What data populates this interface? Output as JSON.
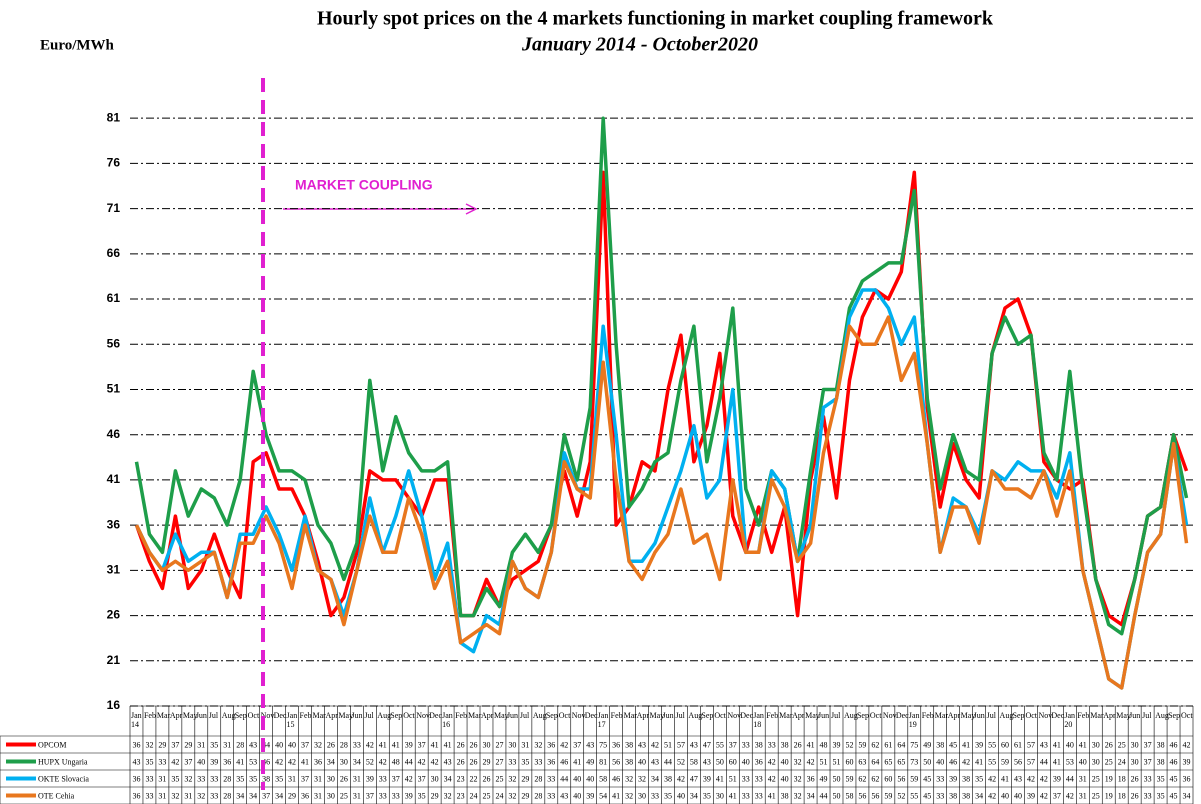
{
  "chart_data": {
    "type": "line",
    "title": "Hourly spot prices on the 4 markets functioning in market coupling framework",
    "subtitle": "January 2014 - October2020",
    "y_label": "Euro/MWh",
    "annotation": "MARKET COUPLING",
    "categories": [
      "Jan 14",
      "Feb",
      "Mar",
      "Apr",
      "May",
      "Jun",
      "Jul",
      "Aug",
      "Sep",
      "Oct",
      "Nov",
      "Dec",
      "Jan 15",
      "Feb",
      "Mar",
      "Apr",
      "May",
      "Jun",
      "Jul",
      "Aug",
      "Sep",
      "Oct",
      "Nov",
      "Dec",
      "Jan 16",
      "Feb",
      "Mar",
      "Apr",
      "May",
      "Jun",
      "Jul",
      "Aug",
      "Sep",
      "Oct",
      "Nov",
      "Dec",
      "Jan 17",
      "Feb",
      "Mar",
      "Apr",
      "May",
      "Jun",
      "Jul",
      "Aug",
      "Sep",
      "Oct",
      "Nov",
      "Dec",
      "Jan 18",
      "Feb",
      "Mar",
      "Apr",
      "May",
      "Jun",
      "Jul",
      "Aug",
      "Sep",
      "Oct",
      "Nov",
      "Dec",
      "Jan 19",
      "Feb",
      "Mar",
      "Apr",
      "May",
      "Jun",
      "Jul",
      "Aug",
      "Sep",
      "Oct",
      "Nov",
      "Dec",
      "Jan 20",
      "Feb",
      "Mar",
      "Apr",
      "May",
      "Jun",
      "Jul",
      "Aug",
      "Sep",
      "Oct"
    ],
    "series": [
      {
        "name": "OPCOM",
        "color": "#ff0000",
        "values": [
          36,
          32,
          29,
          37,
          29,
          31,
          35,
          31,
          28,
          43,
          44,
          40,
          40,
          37,
          32,
          26,
          28,
          33,
          42,
          41,
          41,
          39,
          37,
          41,
          41,
          26,
          26,
          30,
          27,
          30,
          31,
          32,
          36,
          42,
          37,
          43,
          75,
          36,
          38,
          43,
          42,
          51,
          57,
          43,
          47,
          55,
          37,
          33,
          38,
          33,
          38,
          26,
          41,
          48,
          39,
          52,
          59,
          62,
          61,
          64,
          75,
          49,
          38,
          45,
          41,
          39,
          55,
          60,
          61,
          57,
          43,
          41,
          40,
          41,
          30,
          26,
          25,
          30,
          37,
          38,
          46,
          42
        ]
      },
      {
        "name": "HUPX  Ungaria",
        "color": "#1e9e4a",
        "values": [
          43,
          35,
          33,
          42,
          37,
          40,
          39,
          36,
          41,
          53,
          46,
          42,
          42,
          41,
          36,
          34,
          30,
          34,
          52,
          42,
          48,
          44,
          42,
          42,
          43,
          26,
          26,
          29,
          27,
          33,
          35,
          33,
          36,
          46,
          41,
          49,
          81,
          56,
          38,
          40,
          43,
          44,
          52,
          58,
          43,
          50,
          60,
          40,
          36,
          42,
          40,
          32,
          42,
          51,
          51,
          60,
          63,
          64,
          65,
          65,
          73,
          50,
          40,
          46,
          42,
          41,
          55,
          59,
          56,
          57,
          44,
          41,
          53,
          40,
          30,
          25,
          24,
          30,
          37,
          38,
          46,
          39
        ]
      },
      {
        "name": "OKTE Slovacia",
        "color": "#00b0f0",
        "values": [
          36,
          33,
          31,
          35,
          32,
          33,
          33,
          28,
          35,
          35,
          38,
          35,
          31,
          37,
          31,
          30,
          26,
          31,
          39,
          33,
          37,
          42,
          37,
          30,
          34,
          23,
          22,
          26,
          25,
          32,
          29,
          28,
          33,
          44,
          40,
          40,
          58,
          46,
          32,
          32,
          34,
          38,
          42,
          47,
          39,
          41,
          51,
          33,
          33,
          42,
          40,
          32,
          36,
          49,
          50,
          59,
          62,
          62,
          60,
          56,
          59,
          45,
          33,
          39,
          38,
          35,
          42,
          41,
          43,
          42,
          42,
          39,
          44,
          31,
          25,
          19,
          18,
          26,
          33,
          35,
          45,
          36
        ]
      },
      {
        "name": "OTE Cehia",
        "color": "#e8771e",
        "values": [
          36,
          33,
          31,
          32,
          31,
          32,
          33,
          28,
          34,
          34,
          37,
          34,
          29,
          36,
          31,
          30,
          25,
          31,
          37,
          33,
          33,
          39,
          35,
          29,
          32,
          23,
          24,
          25,
          24,
          32,
          29,
          28,
          33,
          43,
          40,
          39,
          54,
          41,
          32,
          30,
          33,
          35,
          40,
          34,
          35,
          30,
          41,
          33,
          33,
          41,
          38,
          32,
          34,
          44,
          50,
          58,
          56,
          56,
          59,
          52,
          55,
          45,
          33,
          38,
          38,
          34,
          42,
          40,
          40,
          39,
          42,
          37,
          42,
          31,
          25,
          19,
          18,
          26,
          33,
          35,
          45,
          34
        ]
      }
    ],
    "ylim": [
      16,
      85
    ],
    "yticks": [
      16,
      21,
      26,
      31,
      36,
      41,
      46,
      51,
      56,
      61,
      66,
      71,
      76,
      81
    ],
    "grid": true
  }
}
